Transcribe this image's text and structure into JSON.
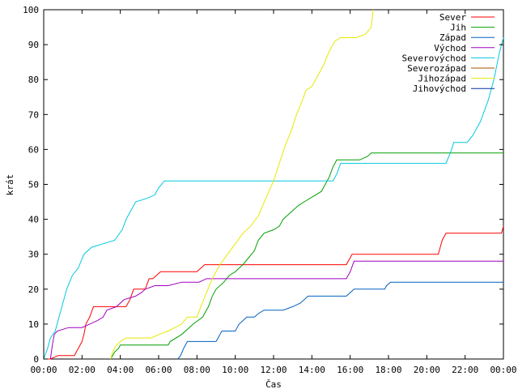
{
  "chart_data": {
    "type": "line",
    "xlabel": "Čas",
    "ylabel": "krát",
    "xlim": [
      0,
      24
    ],
    "ylim": [
      0,
      100
    ],
    "x_ticks": [
      {
        "v": 0,
        "label": "00:00"
      },
      {
        "v": 2,
        "label": "02:00"
      },
      {
        "v": 4,
        "label": "04:00"
      },
      {
        "v": 6,
        "label": "06:00"
      },
      {
        "v": 8,
        "label": "08:00"
      },
      {
        "v": 10,
        "label": "10:00"
      },
      {
        "v": 12,
        "label": "12:00"
      },
      {
        "v": 14,
        "label": "14:00"
      },
      {
        "v": 16,
        "label": "16:00"
      },
      {
        "v": 18,
        "label": "18:00"
      },
      {
        "v": 20,
        "label": "20:00"
      },
      {
        "v": 22,
        "label": "22:00"
      },
      {
        "v": 24,
        "label": "00:00"
      }
    ],
    "y_ticks": [
      0,
      10,
      20,
      30,
      40,
      50,
      60,
      70,
      80,
      90,
      100
    ],
    "grid": false,
    "legend_position": "top-right",
    "series": [
      {
        "name": "Sever",
        "color": "#ff0000",
        "x": [
          0.0,
          0.35,
          0.75,
          1.6,
          1.8,
          2.0,
          2.1,
          2.2,
          2.4,
          2.6,
          4.3,
          4.5,
          4.7,
          5.3,
          5.5,
          5.7,
          6.1,
          6.3,
          8.0,
          8.2,
          8.4,
          10.0,
          15.0,
          15.8,
          15.9,
          16.1,
          20.6,
          20.8,
          21.0,
          23.9,
          24.0
        ],
        "y": [
          0,
          0,
          1,
          1,
          3,
          5,
          7,
          10,
          12,
          15,
          15,
          17,
          20,
          20,
          23,
          23,
          25,
          25,
          25,
          26,
          27,
          27,
          27,
          27,
          28,
          30,
          30,
          34,
          36,
          36,
          38
        ]
      },
      {
        "name": "Jih",
        "color": "#00a000",
        "x": [
          3.5,
          3.7,
          3.9,
          4.0,
          6.5,
          6.6,
          7.2,
          7.6,
          7.8,
          8.3,
          8.6,
          8.8,
          9.0,
          9.4,
          9.7,
          10.0,
          10.2,
          10.4,
          10.7,
          11.0,
          11.2,
          11.5,
          12.0,
          12.3,
          12.5,
          12.7,
          12.9,
          13.1,
          13.3,
          13.6,
          13.9,
          14.2,
          14.5,
          14.9,
          15.1,
          15.3,
          15.5,
          16.5,
          16.9,
          17.1,
          20.0,
          24.0
        ],
        "y": [
          0,
          2,
          3,
          4,
          4,
          5,
          7,
          9,
          10,
          12,
          15,
          18,
          20,
          22,
          24,
          25,
          26,
          27,
          29,
          31,
          34,
          36,
          37,
          38,
          40,
          41,
          42,
          43,
          44,
          45,
          46,
          47,
          48,
          52,
          55,
          57,
          57,
          57,
          58,
          59,
          59,
          59
        ]
      },
      {
        "name": "Západ",
        "color": "#0060c0",
        "x": [
          7.0,
          7.15,
          7.3,
          7.5,
          9.0,
          9.1,
          9.2,
          9.3,
          10.0,
          10.1,
          10.2,
          10.4,
          10.6,
          11.0,
          11.2,
          11.5,
          12.5,
          13.0,
          13.4,
          13.6,
          13.8,
          15.8,
          16.0,
          16.2,
          17.8,
          17.9,
          18.1,
          24.0
        ],
        "y": [
          0,
          1,
          3,
          5,
          5,
          6,
          7,
          8,
          8,
          9,
          10,
          11,
          12,
          12,
          13,
          14,
          14,
          15,
          16,
          17,
          18,
          18,
          19,
          20,
          20,
          21,
          22,
          22
        ]
      },
      {
        "name": "Východ",
        "color": "#a000c0",
        "x": [
          0.35,
          0.45,
          0.55,
          0.7,
          1.3,
          2.0,
          2.4,
          2.8,
          3.1,
          3.3,
          3.8,
          4.2,
          4.8,
          5.1,
          5.3,
          5.8,
          6.5,
          7.2,
          8.1,
          8.5,
          9.2,
          10.0,
          15.8,
          16.0,
          16.2,
          24.0
        ],
        "y": [
          0,
          4,
          7,
          8,
          9,
          9,
          10,
          11,
          12,
          14,
          15,
          17,
          18,
          19,
          20,
          21,
          21,
          22,
          22,
          23,
          23,
          23,
          23,
          25,
          28,
          28
        ]
      },
      {
        "name": "Severovýchod",
        "color": "#00c8e0",
        "x": [
          0.0,
          0.2,
          0.35,
          0.6,
          0.8,
          1.0,
          1.2,
          1.5,
          1.8,
          2.1,
          2.5,
          3.1,
          3.7,
          4.1,
          4.3,
          4.6,
          4.8,
          5.4,
          5.8,
          6.0,
          6.3,
          6.5,
          7.0,
          8.5,
          10.0,
          15.1,
          15.3,
          15.5,
          16.0,
          21.0,
          21.3,
          21.4,
          22.1,
          22.4,
          22.8,
          23.2,
          23.5,
          23.8,
          24.0
        ],
        "y": [
          0,
          3,
          6,
          8,
          12,
          16,
          20,
          24,
          26,
          30,
          32,
          33,
          34,
          37,
          40,
          43,
          45,
          46,
          47,
          49,
          51,
          51,
          51,
          51,
          51,
          51,
          53,
          56,
          56,
          56,
          60,
          62,
          62,
          64,
          68,
          74,
          80,
          88,
          92
        ]
      },
      {
        "name": "Severozápad",
        "color": "#a05000",
        "x": [],
        "y": []
      },
      {
        "name": "Jihozápad",
        "color": "#e8e800",
        "x": [
          3.5,
          3.6,
          3.8,
          4.0,
          4.3,
          5.6,
          6.0,
          6.5,
          7.2,
          7.5,
          8.0,
          8.2,
          8.5,
          8.8,
          9.2,
          9.6,
          10.0,
          10.4,
          10.8,
          11.2,
          11.6,
          12.0,
          12.3,
          12.6,
          12.9,
          13.2,
          13.5,
          13.7,
          14.0,
          14.3,
          14.6,
          14.9,
          15.2,
          15.5,
          16.3,
          16.8,
          17.1,
          17.2
        ],
        "y": [
          0,
          2,
          4,
          5,
          6,
          6,
          7,
          8,
          10,
          12,
          12,
          15,
          19,
          23,
          27,
          30,
          33,
          36,
          38,
          41,
          46,
          51,
          56,
          61,
          65,
          70,
          74,
          77,
          78,
          81,
          84,
          88,
          91,
          92,
          92,
          93,
          95,
          100
        ]
      },
      {
        "name": "Jihovýchod",
        "color": "#0030a0",
        "x": [],
        "y": []
      }
    ]
  }
}
